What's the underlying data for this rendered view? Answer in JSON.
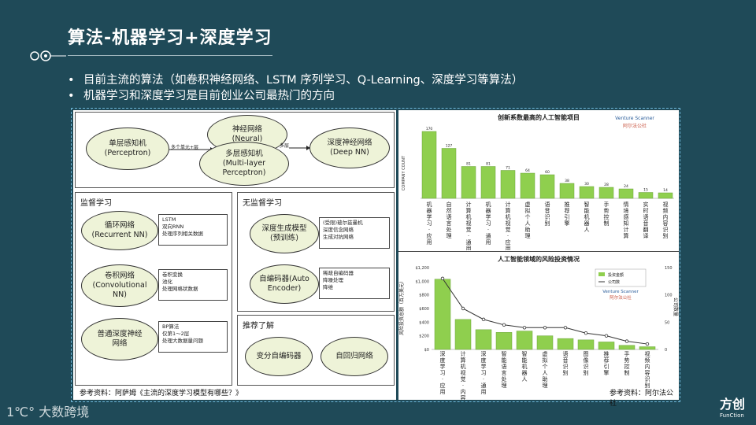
{
  "title": "算法-机器学习+深度学习",
  "bullets": [
    "目前主流的算法（如卷积神经网络、LSTM 序列学习、Q-Learning、深度学习等算法）",
    "机器学习和深度学习是目前创业公司最热门的方向"
  ],
  "diagram": {
    "nodes": {
      "perceptron": {
        "line1": "单层感知机",
        "line2": "(Perceptron)"
      },
      "neural": {
        "line1": "神经网络",
        "line2": "(Neural)"
      },
      "mlp": {
        "line1": "多层感知机",
        "line2": "(Multi-layer",
        "line3": "Perceptron)"
      },
      "deepnn": {
        "line1": "深度神经网络",
        "line2": "(Deep NN)"
      }
    },
    "arrow1_label": "多个单元+层",
    "arrow2_label": "多层",
    "supervised": {
      "title": "监督学习",
      "rnn": {
        "line1": "循环网络",
        "line2": "(Recurrent NN)",
        "notes": [
          "LSTM",
          "双向RNN",
          "处理序列相关数据"
        ]
      },
      "cnn": {
        "line1": "卷积网络",
        "line2": "(Convolutional",
        "line3": "NN)",
        "notes": [
          "卷积变换",
          "池化",
          "处理网格状数据"
        ]
      },
      "dnn": {
        "line1": "普通深度神经",
        "line2": "网络",
        "notes": [
          "BP算法",
          "仅第1～2层",
          "处理大数据量问题"
        ]
      }
    },
    "unsupervised": {
      "title": "无监督学习",
      "gen": {
        "line1": "深度生成模型",
        "line2": "(预训练)",
        "notes": [
          "(受限)玻尔兹曼机",
          "深度信念网络",
          "生成对抗网络"
        ]
      },
      "ae": {
        "line1": "自编码器(Auto",
        "line2": "Encoder)",
        "notes": [
          "稀疏自编码器",
          "降噪处理",
          "降维"
        ]
      }
    },
    "recommend": {
      "title": "推荐了解",
      "vae": "变分自编码器",
      "rec": "自回归网络"
    },
    "source": "参考资料：阿萨姆《主流的深度学习模型有哪些？》"
  },
  "chart_top": {
    "title": "创新系数最高的人工智能项目",
    "brand1": "Venture Scanner",
    "brand2": "阿尔法公社",
    "ylabel": "COMPANY COUNT",
    "categories": [
      "机器学习·应用",
      "自然语言处理",
      "计算机视觉·通用",
      "机器学习·通用",
      "计算机视觉·应用",
      "虚拟个人助理",
      "语音识别",
      "推荐引擎",
      "智能机器人",
      "手势控制",
      "情境感知计算",
      "实时语音翻译",
      "视频内容识别"
    ],
    "values": [
      170,
      127,
      81,
      81,
      71,
      64,
      60,
      38,
      30,
      28,
      24,
      15,
      14
    ]
  },
  "chart_data": {
    "type": "bar",
    "title": "人工智能领域的风险投资情况",
    "ylabel": "风险投资总额（百万美元）",
    "y2label": "公司数量",
    "brand1": "Venture Scanner",
    "brand2": "阿尔法公社",
    "legend": [
      "投资金额",
      "公司数"
    ],
    "categories": [
      "深度学习·应用",
      "计算机视觉·内容识别",
      "深度学习·通用",
      "智能语言处理",
      "智能机器人",
      "虚拟个人助理",
      "语音识别",
      "图像识别",
      "推荐引擎",
      "手势控制",
      "视频内容识别"
    ],
    "values": [
      1030,
      440,
      290,
      250,
      270,
      200,
      160,
      140,
      110,
      60,
      40
    ],
    "line_values": [
      130,
      75,
      55,
      45,
      40,
      40,
      40,
      30,
      25,
      15,
      10
    ],
    "yticks": [
      "$1,200",
      "$1,000",
      "$800",
      "$600",
      "$400",
      "$200",
      "$0"
    ],
    "y2ticks": [
      "150",
      "100",
      "50",
      "0"
    ],
    "ylim": [
      0,
      1200
    ]
  },
  "source_right": "参考资料：阿尔法公社",
  "footer_logo": "大数跨境",
  "brand": {
    "name": "方创",
    "sub": "FunCtion"
  },
  "colors": {
    "background": "#1f4a58",
    "bar": "#8fcf4e",
    "line": "#333333"
  }
}
